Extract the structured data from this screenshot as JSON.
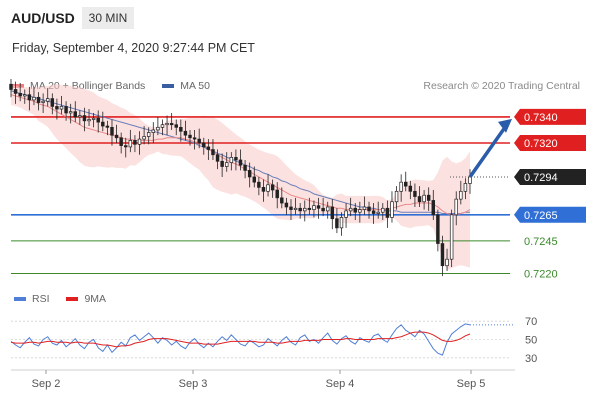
{
  "header": {
    "symbol": "AUD/USD",
    "timeframe": "30 MIN",
    "datetime": "Friday, September 4, 2020 9:27:44 PM CET"
  },
  "legend": {
    "items": [
      {
        "label": "MA 20 + Bollinger Bands",
        "color": "#f08080"
      },
      {
        "label": "MA 50",
        "color": "#3a5fa0"
      }
    ],
    "credit": "Research © 2020 Trading Central"
  },
  "rsi_legend": {
    "items": [
      {
        "label": "RSI",
        "color": "#4f7fd6"
      },
      {
        "label": "9MA",
        "color": "#e02020"
      }
    ]
  },
  "chart_data": [
    {
      "type": "candlestick",
      "x_ticks": [
        "Sep 2",
        "Sep 3",
        "Sep 4",
        "Sep 5"
      ],
      "ylim": [
        0.7212,
        0.7356
      ],
      "current_price": 0.7294,
      "levels": [
        {
          "value": 0.734,
          "label": "0.7340",
          "kind": "resistance",
          "color": "#e02020"
        },
        {
          "value": 0.732,
          "label": "0.7320",
          "kind": "resistance",
          "color": "#e02020"
        },
        {
          "value": 0.7294,
          "label": "0.7294",
          "kind": "last",
          "color": "#222222"
        },
        {
          "value": 0.7265,
          "label": "0.7265",
          "kind": "pivot",
          "color": "#2f6fd6"
        },
        {
          "value": 0.7245,
          "label": "0.7245",
          "kind": "support",
          "color": "#3a8a2a"
        },
        {
          "value": 0.722,
          "label": "0.7220",
          "kind": "support",
          "color": "#3a8a2a"
        }
      ],
      "close_series": [
        0.7361,
        0.7358,
        0.7356,
        0.7357,
        0.7353,
        0.7355,
        0.7351,
        0.7352,
        0.7354,
        0.7348,
        0.7346,
        0.7348,
        0.7343,
        0.7344,
        0.734,
        0.7341,
        0.7337,
        0.7338,
        0.7339,
        0.7336,
        0.7333,
        0.7332,
        0.7326,
        0.7324,
        0.7318,
        0.7317,
        0.7322,
        0.7319,
        0.7323,
        0.7325,
        0.7328,
        0.733,
        0.7332,
        0.7334,
        0.7335,
        0.7334,
        0.7332,
        0.7329,
        0.7326,
        0.7324,
        0.7323,
        0.732,
        0.7317,
        0.7315,
        0.7311,
        0.7306,
        0.7302,
        0.7305,
        0.7309,
        0.7307,
        0.7303,
        0.7299,
        0.7294,
        0.729,
        0.7286,
        0.7283,
        0.7288,
        0.7284,
        0.7278,
        0.7274,
        0.7271,
        0.7269,
        0.727,
        0.7268,
        0.727,
        0.7269,
        0.7272,
        0.727,
        0.7268,
        0.7271,
        0.7262,
        0.7255,
        0.7263,
        0.7268,
        0.727,
        0.7267,
        0.7269,
        0.7271,
        0.7268,
        0.7266,
        0.7267,
        0.727,
        0.7263,
        0.7275,
        0.7283,
        0.729,
        0.7287,
        0.7283,
        0.7279,
        0.7275,
        0.728,
        0.7276,
        0.7265,
        0.7243,
        0.7226,
        0.7231,
        0.7265,
        0.7277,
        0.7283,
        0.7289,
        0.7294
      ],
      "ma20_series": [
        0.7357,
        0.7356,
        0.7355,
        0.7354,
        0.7353,
        0.7352,
        0.735,
        0.7349,
        0.7348,
        0.7346,
        0.7344,
        0.7342,
        0.734,
        0.7338,
        0.7336,
        0.7334,
        0.7332,
        0.7331,
        0.733,
        0.7329,
        0.7328,
        0.7327,
        0.7326,
        0.7325,
        0.7324,
        0.7323,
        0.7323,
        0.7322,
        0.7322,
        0.7322,
        0.7322,
        0.7322,
        0.7323,
        0.7323,
        0.7324,
        0.7324,
        0.7324,
        0.7324,
        0.7323,
        0.7322,
        0.7321,
        0.732,
        0.7318,
        0.7316,
        0.7313,
        0.7311,
        0.7309,
        0.7307,
        0.7305,
        0.7304,
        0.7302,
        0.73,
        0.7298,
        0.7296,
        0.7294,
        0.7292,
        0.729,
        0.7288,
        0.7286,
        0.7284,
        0.7282,
        0.728,
        0.7279,
        0.7278,
        0.7277,
        0.7276,
        0.7275,
        0.7274,
        0.7273,
        0.7272,
        0.7271,
        0.727,
        0.727,
        0.7269,
        0.7269,
        0.7269,
        0.7269,
        0.7269,
        0.7269,
        0.7269,
        0.7269,
        0.7269,
        0.7269,
        0.727,
        0.7271,
        0.7272,
        0.7273,
        0.7273,
        0.7274,
        0.7274,
        0.7274,
        0.7274,
        0.7273,
        0.7271,
        0.7268,
        0.7266,
        0.7265,
        0.7265,
        0.7266,
        0.7267,
        0.7269
      ],
      "ma50_series": [
        0.736,
        0.7359,
        0.7358,
        0.7357,
        0.7356,
        0.7355,
        0.7354,
        0.7353,
        0.7352,
        0.7351,
        0.735,
        0.7349,
        0.7348,
        0.7347,
        0.7346,
        0.7345,
        0.7344,
        0.7343,
        0.7342,
        0.7341,
        0.734,
        0.7339,
        0.7338,
        0.7337,
        0.7336,
        0.7335,
        0.7334,
        0.7333,
        0.7332,
        0.7331,
        0.733,
        0.7329,
        0.7328,
        0.7327,
        0.7326,
        0.7325,
        0.7324,
        0.7323,
        0.7322,
        0.7321,
        0.732,
        0.7318,
        0.7317,
        0.7315,
        0.7314,
        0.7312,
        0.7311,
        0.7309,
        0.7308,
        0.7306,
        0.7305,
        0.7303,
        0.7302,
        0.73,
        0.7299,
        0.7297,
        0.7296,
        0.7294,
        0.7293,
        0.7291,
        0.729,
        0.7288,
        0.7287,
        0.7285,
        0.7284,
        0.7283,
        0.7281,
        0.728,
        0.7279,
        0.7278,
        0.7277,
        0.7276,
        0.7275,
        0.7274,
        0.7273,
        0.7272,
        0.7271,
        0.7271,
        0.727,
        0.727,
        0.7269,
        0.7269,
        0.7268,
        0.7268,
        0.7268,
        0.7267,
        0.7267,
        0.7267,
        0.7267,
        0.7267,
        0.7267,
        0.7267,
        0.7267,
        0.7267,
        0.7266,
        0.7266,
        0.7266,
        0.7266,
        0.7266,
        0.7267,
        0.7267
      ],
      "projection": {
        "from": 0.7294,
        "to": 0.734
      }
    },
    {
      "type": "line",
      "name": "RSI panel",
      "ylim": [
        20,
        80
      ],
      "y_ticks": [
        70,
        50,
        30
      ],
      "rsi_series": [
        48,
        44,
        41,
        47,
        52,
        45,
        43,
        50,
        53,
        46,
        44,
        49,
        42,
        46,
        51,
        44,
        40,
        47,
        50,
        41,
        37,
        44,
        36,
        41,
        47,
        43,
        52,
        55,
        49,
        53,
        57,
        52,
        46,
        52,
        49,
        44,
        48,
        43,
        40,
        47,
        51,
        45,
        41,
        46,
        42,
        48,
        53,
        49,
        55,
        50,
        45,
        43,
        49,
        46,
        42,
        44,
        51,
        47,
        43,
        49,
        53,
        47,
        44,
        52,
        55,
        48,
        50,
        46,
        52,
        57,
        49,
        45,
        51,
        54,
        48,
        45,
        52,
        49,
        47,
        54,
        56,
        50,
        47,
        55,
        62,
        66,
        60,
        57,
        53,
        60,
        56,
        48,
        40,
        35,
        33,
        47,
        56,
        60,
        64,
        67,
        66
      ],
      "ma9_series": [
        47,
        46,
        46,
        46,
        47,
        47,
        46,
        47,
        48,
        48,
        47,
        47,
        47,
        46,
        47,
        47,
        46,
        46,
        46,
        45,
        44,
        44,
        43,
        42,
        43,
        43,
        44,
        46,
        47,
        48,
        50,
        51,
        51,
        51,
        51,
        50,
        49,
        48,
        47,
        46,
        46,
        46,
        45,
        45,
        45,
        45,
        46,
        47,
        48,
        48,
        48,
        48,
        48,
        48,
        47,
        47,
        47,
        47,
        46,
        46,
        47,
        48,
        48,
        48,
        49,
        49,
        49,
        49,
        50,
        50,
        50,
        50,
        50,
        51,
        51,
        50,
        50,
        50,
        50,
        50,
        51,
        51,
        51,
        51,
        52,
        53,
        55,
        57,
        58,
        58,
        58,
        57,
        55,
        52,
        49,
        48,
        48,
        49,
        51,
        54,
        56
      ],
      "rsi_last": 66
    }
  ]
}
